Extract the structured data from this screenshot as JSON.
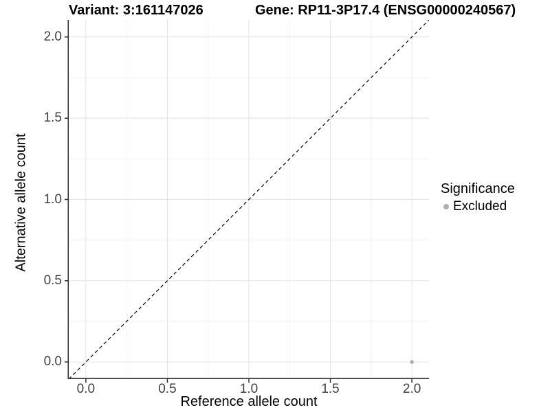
{
  "title": {
    "variant": "Variant: 3:161147026",
    "gene": "Gene: RP11-3P17.4 (ENSG00000240567)"
  },
  "axes": {
    "x": {
      "label": "Reference allele count",
      "tick_labels": [
        "0.0",
        "0.5",
        "1.0",
        "1.5",
        "2.0"
      ]
    },
    "y": {
      "label": "Alternative allele count",
      "tick_labels": [
        "0.0",
        "0.5",
        "1.0",
        "1.5",
        "2.0"
      ]
    }
  },
  "legend": {
    "title": "Significance",
    "items": [
      {
        "label": "Excluded",
        "color": "#b0b0b0"
      }
    ]
  },
  "colors": {
    "background": "#ffffff",
    "grid_major": "#e2e2e2",
    "grid_minor": "#f0f0f0",
    "axis_line": "#2f2f2f",
    "tick_mark": "#2f2f2f",
    "tick_label": "#404040",
    "point": "#b0b0b0",
    "dashed_line": "#000000"
  },
  "chart_data": {
    "type": "scatter",
    "title": "Variant: 3:161147026 — Gene: RP11-3P17.4 (ENSG00000240567)",
    "xlabel": "Reference allele count",
    "ylabel": "Alternative allele count",
    "xlim": [
      -0.105,
      2.105
    ],
    "ylim": [
      -0.105,
      2.105
    ],
    "xticks": [
      0,
      0.5,
      1,
      1.5,
      2
    ],
    "yticks": [
      0,
      0.5,
      1,
      1.5,
      2
    ],
    "xtick_labels": [
      "0.0",
      "0.5",
      "1.0",
      "1.5",
      "2.0"
    ],
    "ytick_labels": [
      "0.0",
      "0.5",
      "1.0",
      "1.5",
      "2.0"
    ],
    "minor_ticks": [
      0.25,
      0.75,
      1.25,
      1.75
    ],
    "grid": "major+minor",
    "legend_position": "right",
    "series": [
      {
        "name": "Excluded",
        "color": "#b0b0b0",
        "marker": "circle",
        "points": [
          {
            "x": 2.0,
            "y": 0.0
          }
        ]
      }
    ],
    "identity_line": {
      "equation": "y = x",
      "style": "dashed",
      "color": "#000000"
    }
  }
}
